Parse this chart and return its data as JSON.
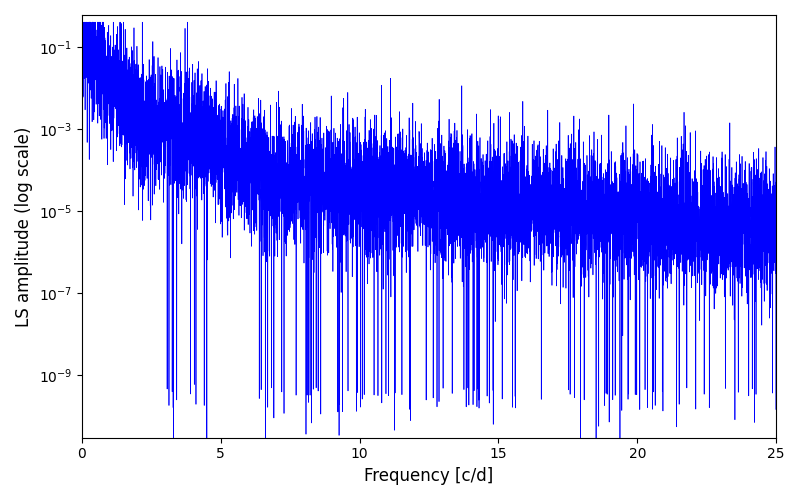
{
  "title": "",
  "xlabel": "Frequency [c/d]",
  "ylabel": "LS amplitude (log scale)",
  "xmin": 0,
  "xmax": 25,
  "ymin": 3e-11,
  "ymax": 0.6,
  "line_color": "#0000FF",
  "line_width": 0.5,
  "figsize": [
    8.0,
    5.0
  ],
  "dpi": 100,
  "background_color": "#ffffff",
  "seed": 17,
  "n_points": 8000,
  "peak_amplitude": 0.15,
  "noise_floor": 3e-06
}
